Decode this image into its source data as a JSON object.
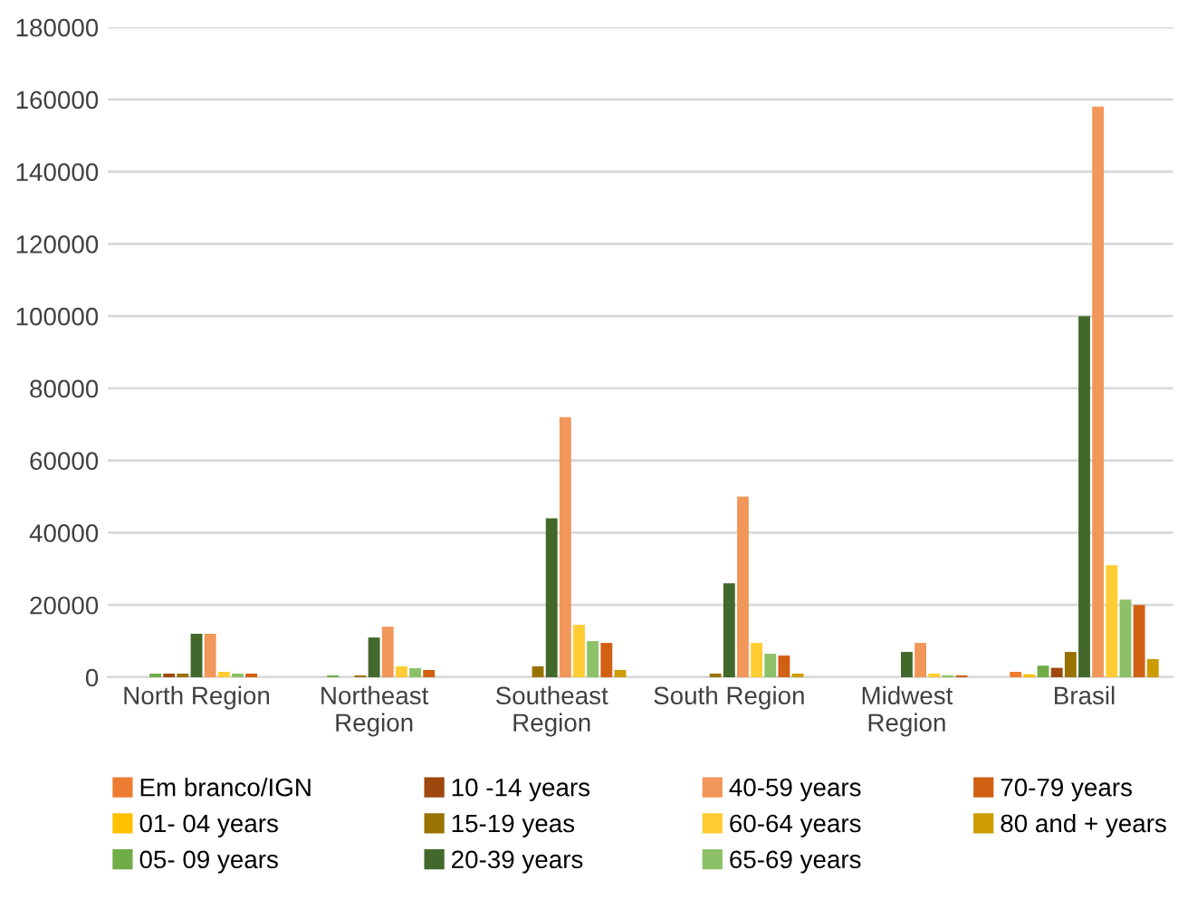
{
  "chart_data": {
    "type": "bar",
    "categories": [
      "North Region",
      "Northeast\nRegion",
      "Southeast\nRegion",
      "South Region",
      "Midwest\nRegion",
      "Brasil"
    ],
    "series": [
      {
        "name": "Em branco/IGN",
        "color": "#ed7d31",
        "values": [
          0,
          0,
          0,
          0,
          0,
          1500
        ]
      },
      {
        "name": "01- 04 years",
        "color": "#ffc000",
        "values": [
          0,
          0,
          0,
          0,
          0,
          800
        ]
      },
      {
        "name": "05- 09 years",
        "color": "#70ad47",
        "values": [
          1000,
          500,
          0,
          0,
          0,
          3200
        ]
      },
      {
        "name": "10 -14 years",
        "color": "#9e480e",
        "values": [
          1000,
          0,
          0,
          0,
          0,
          2600
        ]
      },
      {
        "name": "15-19 yeas",
        "color": "#997300",
        "values": [
          1000,
          500,
          3000,
          1000,
          0,
          7000
        ]
      },
      {
        "name": "20-39 years",
        "color": "#43682b",
        "values": [
          12000,
          11000,
          44000,
          26000,
          7000,
          100000
        ]
      },
      {
        "name": "40-59 years",
        "color": "#f1975a",
        "values": [
          12000,
          14000,
          72000,
          50000,
          9500,
          158000
        ]
      },
      {
        "name": "60-64 years",
        "color": "#ffcd33",
        "values": [
          1500,
          3000,
          14500,
          9500,
          1000,
          31000
        ]
      },
      {
        "name": "65-69 years",
        "color": "#8cc168",
        "values": [
          1000,
          2500,
          10000,
          6500,
          500,
          21500
        ]
      },
      {
        "name": "70-79 years",
        "color": "#d26012",
        "values": [
          1000,
          2000,
          9500,
          6000,
          500,
          20000
        ]
      },
      {
        "name": "80 and + years",
        "color": "#cc9c00",
        "values": [
          0,
          0,
          2000,
          1000,
          0,
          5000
        ]
      }
    ],
    "ylim": [
      0,
      180000
    ],
    "yticks": [
      0,
      20000,
      40000,
      60000,
      80000,
      100000,
      120000,
      140000,
      160000,
      180000
    ],
    "grid": "y",
    "legend": "bottom"
  }
}
